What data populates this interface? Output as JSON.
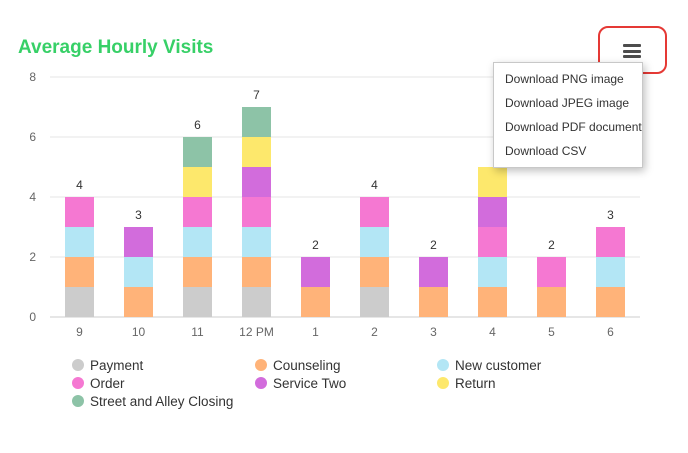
{
  "colors": {
    "title": "#37d067",
    "grid": "#e6e6e6",
    "axis": "#cccccc",
    "highlight": "#e53935"
  },
  "export_menu": {
    "button_icon": "hamburger-menu-icon",
    "items": [
      "Download PNG image",
      "Download JPEG image",
      "Download PDF document",
      "Download CSV"
    ]
  },
  "chart_data": {
    "type": "bar",
    "stacked": true,
    "title": "Average Hourly Visits",
    "xlabel": "",
    "ylabel": "",
    "ylim": [
      0,
      8
    ],
    "yticks": [
      0,
      2,
      4,
      6,
      8
    ],
    "grid": true,
    "legend_position": "bottom",
    "categories": [
      "9",
      "10",
      "11",
      "12 PM",
      "1",
      "2",
      "3",
      "4",
      "5",
      "6"
    ],
    "stack_labels": [
      "4",
      "3",
      "6",
      "7",
      "2",
      "4",
      "2",
      "",
      "2",
      "3"
    ],
    "series": [
      {
        "name": "Payment",
        "color": "#cccccc",
        "values": [
          1,
          0,
          1,
          1,
          0,
          1,
          0,
          0,
          0,
          0
        ]
      },
      {
        "name": "Counseling",
        "color": "#ffb379",
        "values": [
          1,
          1,
          1,
          1,
          1,
          1,
          1,
          1,
          1,
          1
        ]
      },
      {
        "name": "New customer",
        "color": "#b3e6f5",
        "values": [
          1,
          1,
          1,
          1,
          0,
          1,
          0,
          1,
          0,
          1
        ]
      },
      {
        "name": "Order",
        "color": "#f578d2",
        "values": [
          1,
          0,
          1,
          1,
          0,
          1,
          0,
          1,
          1,
          1
        ]
      },
      {
        "name": "Service Two",
        "color": "#d26cdc",
        "values": [
          0,
          1,
          0,
          1,
          1,
          0,
          1,
          1,
          0,
          0
        ]
      },
      {
        "name": "Return",
        "color": "#fde86c",
        "values": [
          0,
          0,
          1,
          1,
          0,
          0,
          0,
          1,
          0,
          0
        ]
      },
      {
        "name": "Street and Alley Closing",
        "color": "#8dc3a7",
        "values": [
          0,
          0,
          1,
          1,
          0,
          0,
          0,
          0,
          0,
          0
        ]
      }
    ]
  }
}
